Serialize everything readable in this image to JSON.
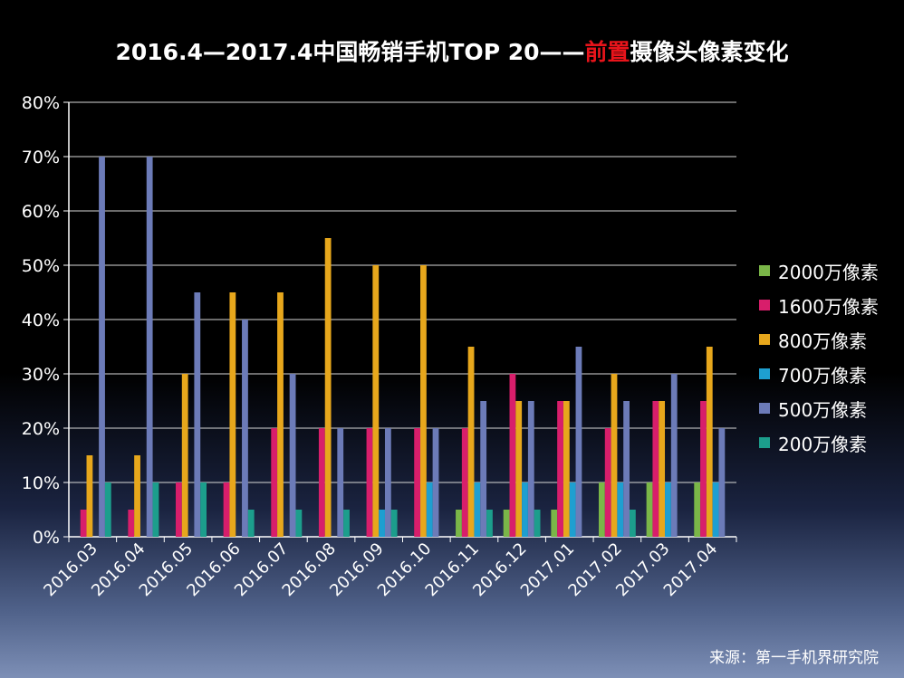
{
  "title_parts": {
    "pre": "2016.4—2017.4中国畅销手机TOP 20——",
    "highlight": "前置",
    "post": "摄像头像素变化"
  },
  "source": "来源：第一手机界研究院",
  "colors": {
    "2000万像素": "#7ab648",
    "1600万像素": "#d81e6b",
    "800万像素": "#e7a71c",
    "700万像素": "#1e9fd0",
    "500万像素": "#6c7bb8",
    "200万像素": "#1c9e8c"
  },
  "chart_data": {
    "type": "bar",
    "categories": [
      "2016.03",
      "2016.04",
      "2016.05",
      "2016.06",
      "2016.07",
      "2016.08",
      "2016.09",
      "2016.10",
      "2016.11",
      "2016.12",
      "2017.01",
      "2017.02",
      "2017.03",
      "2017.04"
    ],
    "series": [
      {
        "name": "2000万像素",
        "values": [
          0,
          0,
          0,
          0,
          0,
          0,
          0,
          0,
          5,
          5,
          5,
          10,
          10,
          10
        ]
      },
      {
        "name": "1600万像素",
        "values": [
          5,
          5,
          10,
          10,
          20,
          20,
          20,
          20,
          20,
          30,
          25,
          20,
          25,
          25
        ]
      },
      {
        "name": "800万像素",
        "values": [
          15,
          15,
          30,
          45,
          45,
          55,
          50,
          50,
          35,
          25,
          25,
          30,
          25,
          35
        ]
      },
      {
        "name": "700万像素",
        "values": [
          0,
          0,
          0,
          0,
          0,
          0,
          5,
          10,
          10,
          10,
          10,
          10,
          10,
          10
        ]
      },
      {
        "name": "500万像素",
        "values": [
          70,
          70,
          45,
          40,
          30,
          20,
          20,
          20,
          25,
          25,
          35,
          25,
          30,
          20
        ]
      },
      {
        "name": "200万像素",
        "values": [
          10,
          10,
          10,
          5,
          5,
          5,
          5,
          0,
          5,
          5,
          0,
          5,
          0,
          0
        ]
      }
    ],
    "ylim": [
      0,
      80
    ],
    "yticks": [
      "0%",
      "10%",
      "20%",
      "30%",
      "40%",
      "50%",
      "60%",
      "70%",
      "80%"
    ],
    "grid": true,
    "legend_position": "right"
  }
}
